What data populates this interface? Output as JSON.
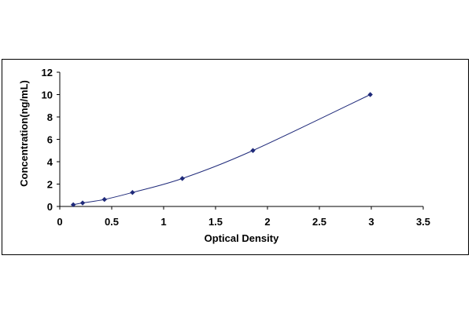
{
  "chart_data": {
    "type": "scatter",
    "title": "",
    "xlabel": "Optical Density",
    "ylabel": "Concentration(ng/mL)",
    "xlim": [
      0,
      3.5
    ],
    "ylim": [
      0,
      12
    ],
    "x_ticks": [
      "0",
      "0.5",
      "1",
      "1.5",
      "2",
      "2.5",
      "3",
      "3.5"
    ],
    "y_ticks": [
      "0",
      "2",
      "4",
      "6",
      "8",
      "10",
      "12"
    ],
    "grid": false,
    "legend": "none",
    "series": [
      {
        "color": "#1f2a7a",
        "x": [
          0.13,
          0.22,
          0.43,
          0.7,
          1.18,
          1.86,
          2.99
        ],
        "y": [
          0.156,
          0.313,
          0.625,
          1.25,
          2.5,
          5,
          10
        ]
      }
    ],
    "fit_curve": {
      "type": "smooth",
      "color": "#1f2a7a"
    }
  }
}
